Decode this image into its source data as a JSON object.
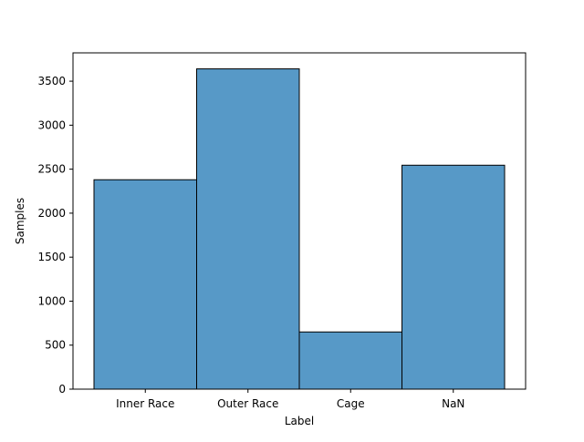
{
  "chart_data": {
    "type": "bar",
    "title": "",
    "xlabel": "Label",
    "ylabel": "Samples",
    "categories": [
      "Inner Race",
      "Outer Race",
      "Cage",
      "NaN"
    ],
    "values": [
      2380,
      3640,
      650,
      2545
    ],
    "ylim": [
      0,
      3822
    ],
    "yticks": [
      0,
      500,
      1000,
      1500,
      2000,
      2500,
      3000,
      3500
    ],
    "grid": false,
    "legend": false,
    "colors": {
      "bar_fill": "#5799c7",
      "bar_edge": "#000000",
      "axis": "#000000"
    }
  }
}
